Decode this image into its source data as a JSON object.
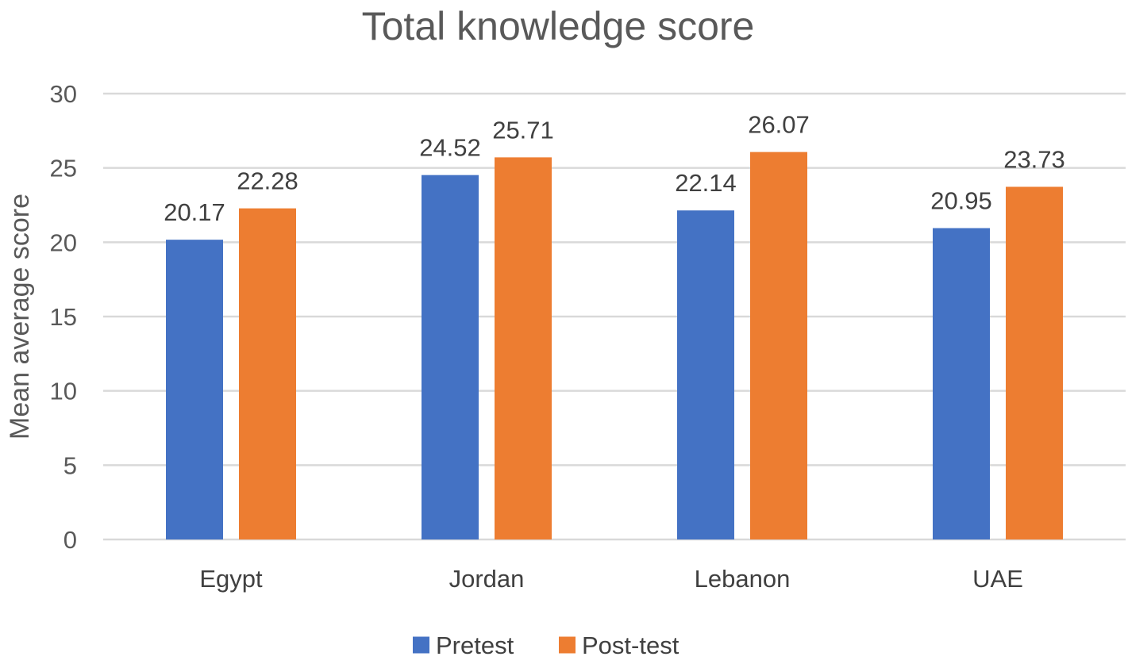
{
  "chart_data": {
    "type": "bar",
    "title": "Total knowledge score",
    "xlabel": "",
    "ylabel": "Mean average score",
    "categories": [
      "Egypt",
      "Jordan",
      "Lebanon",
      "UAE"
    ],
    "series": [
      {
        "name": "Pretest",
        "values": [
          20.17,
          24.52,
          22.14,
          20.95
        ],
        "color": "#4472c4"
      },
      {
        "name": "Post-test",
        "values": [
          22.28,
          25.71,
          26.07,
          23.73
        ],
        "color": "#ed7d31"
      }
    ],
    "value_labels": [
      [
        "20.17",
        "24.52",
        "22.14",
        "20.95"
      ],
      [
        "22.28",
        "25.71",
        "26.07",
        "23.73"
      ]
    ],
    "ylim": [
      0,
      30
    ],
    "yticks": [
      "0",
      "5",
      "10",
      "15",
      "20",
      "25",
      "30"
    ],
    "grid": true,
    "legend": "bottom"
  }
}
